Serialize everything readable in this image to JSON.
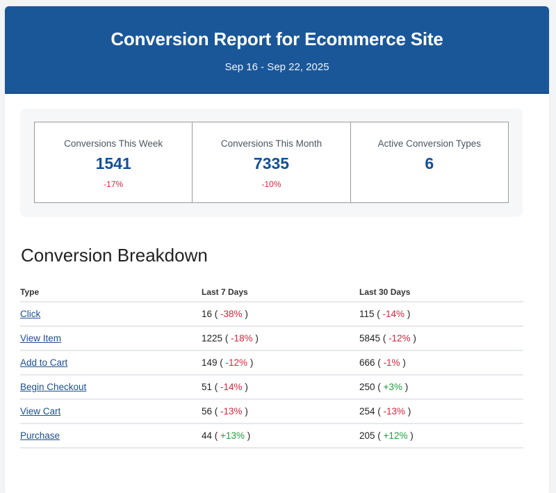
{
  "header": {
    "title": "Conversion Report for Ecommerce Site",
    "date_range": "Sep 16 - Sep 22, 2025"
  },
  "summary": {
    "tiles": [
      {
        "label": "Conversions This Week",
        "value": "1541",
        "delta": "-17%",
        "trend": "negative"
      },
      {
        "label": "Conversions This Month",
        "value": "7335",
        "delta": "-10%",
        "trend": "negative"
      },
      {
        "label": "Active Conversion Types",
        "value": "6",
        "delta": "",
        "trend": "none"
      }
    ]
  },
  "breakdown": {
    "title": "Conversion Breakdown",
    "columns": [
      "Type",
      "Last 7 Days",
      "Last 30 Days"
    ],
    "rows": [
      {
        "type": "Click",
        "d7": "16",
        "d7_delta": "-38%",
        "d7_trend": "negative",
        "d30": "115",
        "d30_delta": "-14%",
        "d30_trend": "negative"
      },
      {
        "type": "View Item",
        "d7": "1225",
        "d7_delta": "-18%",
        "d7_trend": "negative",
        "d30": "5845",
        "d30_delta": "-12%",
        "d30_trend": "negative"
      },
      {
        "type": "Add to Cart",
        "d7": "149",
        "d7_delta": "-12%",
        "d7_trend": "negative",
        "d30": "666",
        "d30_delta": "-1%",
        "d30_trend": "negative"
      },
      {
        "type": "Begin Checkout",
        "d7": "51",
        "d7_delta": "-14%",
        "d7_trend": "negative",
        "d30": "250",
        "d30_delta": "+3%",
        "d30_trend": "positive"
      },
      {
        "type": "View Cart",
        "d7": "56",
        "d7_delta": "-13%",
        "d7_trend": "negative",
        "d30": "254",
        "d30_delta": "-13%",
        "d30_trend": "negative"
      },
      {
        "type": "Purchase",
        "d7": "44",
        "d7_delta": "+13%",
        "d7_trend": "positive",
        "d30": "205",
        "d30_delta": "+12%",
        "d30_trend": "positive"
      }
    ]
  },
  "colors": {
    "brand": "#1a5799",
    "value": "#134f96",
    "negative": "#d7263d",
    "positive": "#1f9d3a",
    "link": "#1a4f8f"
  }
}
